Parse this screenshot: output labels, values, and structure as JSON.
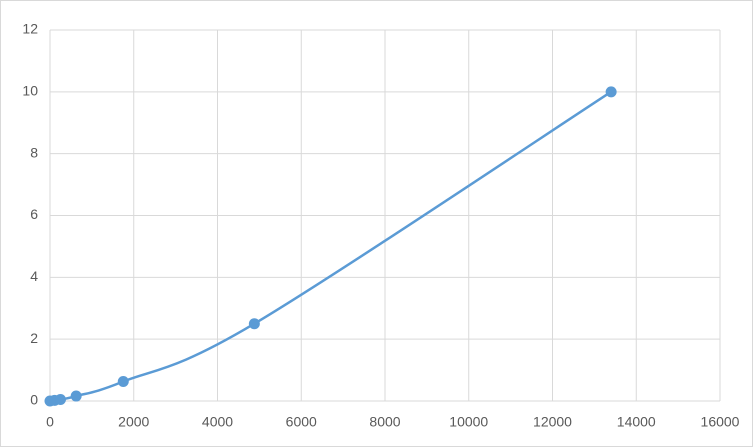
{
  "chart_data": {
    "type": "scatter",
    "smooth": true,
    "x": [
      0,
      110,
      250,
      625,
      1750,
      4880,
      13400
    ],
    "series": [
      {
        "color": "#5b9bd5",
        "values": [
          0,
          0.02,
          0.05,
          0.16,
          0.63,
          2.5,
          10
        ]
      }
    ],
    "xlim": [
      0,
      16000
    ],
    "xticks": [
      0,
      2000,
      4000,
      6000,
      8000,
      10000,
      12000,
      14000,
      16000
    ],
    "ylim": [
      0,
      12
    ],
    "yticks": [
      0,
      2,
      4,
      6,
      8,
      10,
      12
    ],
    "grid": true
  }
}
